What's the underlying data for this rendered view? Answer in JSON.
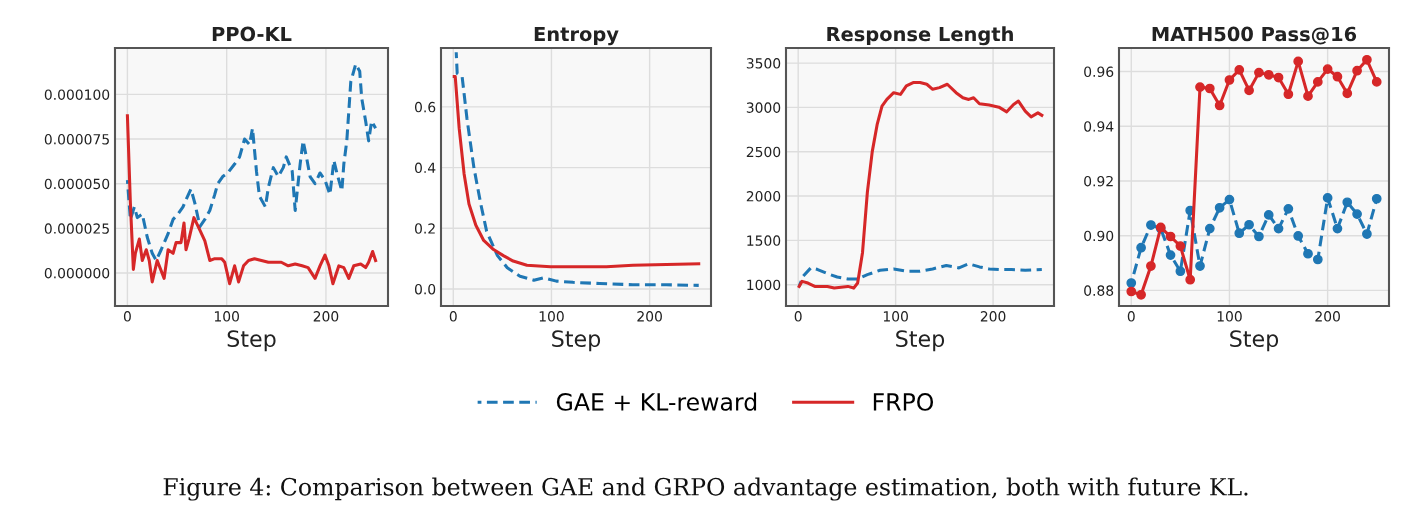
{
  "chart_data": [
    {
      "type": "line",
      "title": "PPO-KL",
      "xlabel": "Step",
      "legend": "bottom",
      "grid": true,
      "annotations": [
        "Figure 4: Comparison between GAE and GRPO advantage estimation, both with future KL."
      ],
      "xlim": [
        -12.5,
        262.5
      ],
      "xticks": [
        0,
        100,
        200
      ],
      "ylim": [
        -1.85e-05,
        0.000126
      ],
      "yticks": [
        {
          "value": 0,
          "label": "0.000000"
        },
        {
          "value": 2.5e-05,
          "label": "0.000025"
        },
        {
          "value": 5e-05,
          "label": "0.000050"
        },
        {
          "value": 7.5e-05,
          "label": "0.000075"
        },
        {
          "value": 0.0001,
          "label": "0.000100"
        }
      ],
      "series": [
        {
          "name": "GAE + KL-reward",
          "color": "#1f77b4",
          "line_style": "dashed",
          "x": [
            0,
            3,
            7,
            10,
            15,
            20,
            25,
            29,
            34,
            41,
            46,
            51,
            56,
            59,
            64,
            68,
            73,
            78,
            83,
            88,
            91,
            96,
            101,
            108,
            113,
            118,
            123,
            126,
            130,
            133,
            139,
            142,
            147,
            152,
            157,
            160,
            166,
            169,
            174,
            177,
            181,
            184,
            189,
            194,
            199,
            204,
            208,
            211,
            216,
            218,
            221,
            225,
            230,
            234,
            236,
            240,
            243,
            246,
            250
          ],
          "values": [
            5.2e-05,
            3e-05,
            3.7e-05,
            3.1e-05,
            3.3e-05,
            2e-05,
            1.1e-05,
            7e-06,
            1.3e-05,
            2.2e-05,
            3e-05,
            3.3e-05,
            3.7e-05,
            4.1e-05,
            4.7e-05,
            3.9e-05,
            2.6e-05,
            3e-05,
            3.5e-05,
            4.4e-05,
            5e-05,
            5.4e-05,
            5.6e-05,
            6.1e-05,
            6.5e-05,
            7.5e-05,
            7.2e-05,
            8.1e-05,
            5.7e-05,
            4.3e-05,
            3.7e-05,
            4.8e-05,
            5.9e-05,
            5.4e-05,
            5.9e-05,
            6.5e-05,
            5.7e-05,
            3.5e-05,
            6.1e-05,
            7.4e-05,
            6.3e-05,
            5.4e-05,
            5e-05,
            5.6e-05,
            5.2e-05,
            4.4e-05,
            6.3e-05,
            5.6e-05,
            4.6e-05,
            6.1e-05,
            7.4e-05,
            0.000107,
            0.000117,
            0.000113,
            9.8e-05,
            8.5e-05,
            7.4e-05,
            8.5e-05,
            8.1e-05
          ]
        },
        {
          "name": "FRPO",
          "color": "#d62728",
          "line_style": "solid",
          "x": [
            0,
            3,
            6,
            8,
            12,
            15,
            19,
            22,
            25,
            30,
            37,
            41,
            46,
            49,
            54,
            57,
            59,
            62,
            67,
            73,
            78,
            83,
            88,
            95,
            98,
            103,
            108,
            112,
            117,
            122,
            128,
            135,
            142,
            149,
            155,
            162,
            169,
            176,
            182,
            189,
            194,
            199,
            203,
            207,
            213,
            218,
            223,
            228,
            235,
            240,
            243,
            247,
            250
          ],
          "values": [
            8.8e-05,
            3.9e-05,
            2e-06,
            1.1e-05,
            1.9e-05,
            7e-06,
            1.3e-05,
            7e-06,
            -5e-06,
            7e-06,
            -3e-06,
            1.3e-05,
            1.1e-05,
            1.7e-05,
            1.7e-05,
            2.8e-05,
            1.3e-05,
            1.9e-05,
            3.1e-05,
            2.4e-05,
            1.8e-05,
            7e-06,
            8e-06,
            8e-06,
            6e-06,
            -6e-06,
            4e-06,
            -5e-06,
            4e-06,
            7e-06,
            8e-06,
            7e-06,
            6e-06,
            6e-06,
            6e-06,
            4e-06,
            5e-06,
            4e-06,
            3e-06,
            -3e-06,
            4e-06,
            1e-05,
            4e-06,
            -6e-06,
            4e-06,
            3e-06,
            -3e-06,
            4e-06,
            5e-06,
            3e-06,
            6e-06,
            1.2e-05,
            7e-06
          ]
        }
      ]
    },
    {
      "type": "line",
      "title": "Entropy",
      "xlabel": "Step",
      "grid": true,
      "xlim": [
        -12.5,
        262.5
      ],
      "xticks": [
        0,
        100,
        200
      ],
      "ylim": [
        -0.056,
        0.794
      ],
      "yticks": [
        {
          "value": 0,
          "label": "0.0"
        },
        0.2,
        0.4,
        0.6
      ],
      "series": [
        {
          "color": "#1f77b4",
          "line_style": "dashed",
          "x": [
            3,
            4,
            9,
            14,
            21,
            28,
            34,
            45,
            55,
            68,
            82,
            92,
            105,
            122,
            149,
            183,
            217,
            250
          ],
          "values": [
            0.78,
            0.71,
            0.7,
            0.56,
            0.4,
            0.28,
            0.19,
            0.11,
            0.07,
            0.042,
            0.029,
            0.037,
            0.026,
            0.022,
            0.018,
            0.014,
            0.014,
            0.012
          ]
        },
        {
          "color": "#d62728",
          "line_style": "solid",
          "x": [
            1,
            2,
            6,
            11,
            16,
            23,
            31,
            41,
            51,
            61,
            75,
            99,
            132,
            156,
            183,
            217,
            250
          ],
          "values": [
            0.7,
            0.7,
            0.53,
            0.38,
            0.28,
            0.21,
            0.16,
            0.13,
            0.11,
            0.092,
            0.078,
            0.073,
            0.073,
            0.073,
            0.078,
            0.081,
            0.083
          ]
        }
      ]
    },
    {
      "type": "line",
      "title": "Response Length",
      "xlabel": "Step",
      "grid": true,
      "xlim": [
        -12.5,
        262.5
      ],
      "xticks": [
        0,
        100,
        200
      ],
      "ylim": [
        760,
        3670
      ],
      "yticks": [
        1000,
        1500,
        2000,
        2500,
        3000,
        3500
      ],
      "series": [
        {
          "color": "#1f77b4",
          "line_style": "dashed",
          "x": [
            1,
            5,
            13,
            20,
            30,
            40,
            51,
            61,
            71,
            84,
            98,
            111,
            125,
            138,
            152,
            165,
            175,
            186,
            196,
            206,
            219,
            233,
            250
          ],
          "values": [
            981,
            1095,
            1190,
            1171,
            1125,
            1087,
            1065,
            1065,
            1114,
            1163,
            1178,
            1152,
            1152,
            1178,
            1217,
            1190,
            1236,
            1201,
            1178,
            1171,
            1171,
            1163,
            1171
          ]
        },
        {
          "color": "#d62728",
          "line_style": "solid",
          "x": [
            1,
            4,
            10,
            17,
            30,
            37,
            51,
            57,
            61,
            66,
            71,
            76,
            81,
            86,
            91,
            98,
            105,
            111,
            118,
            125,
            132,
            138,
            145,
            153,
            162,
            169,
            175,
            180,
            186,
            196,
            206,
            214,
            221,
            226,
            233,
            239,
            246,
            250
          ],
          "values": [
            981,
            1038,
            1019,
            981,
            981,
            962,
            981,
            962,
            1019,
            1361,
            2045,
            2501,
            2805,
            3014,
            3090,
            3166,
            3147,
            3242,
            3280,
            3280,
            3261,
            3204,
            3223,
            3261,
            3166,
            3109,
            3090,
            3109,
            3041,
            3026,
            3003,
            2950,
            3033,
            3071,
            2957,
            2893,
            2938,
            2911
          ]
        }
      ]
    },
    {
      "type": "line",
      "title": "MATH500 Pass@16",
      "xlabel": "Step",
      "grid": true,
      "marker": "circle",
      "xlim": [
        -12.5,
        262.5
      ],
      "xticks": [
        0,
        100,
        200
      ],
      "ylim": [
        0.8743,
        0.9686
      ],
      "yticks": [
        0.88,
        {
          "value": 0.9,
          "label": "0.90"
        },
        0.92,
        0.94,
        0.96
      ],
      "x": [
        0,
        10,
        20,
        30,
        40,
        50,
        60,
        70,
        80,
        90,
        100,
        110,
        120,
        130,
        140,
        150,
        160,
        170,
        180,
        190,
        200,
        210,
        220,
        230,
        240,
        250
      ],
      "series": [
        {
          "color": "#1f77b4",
          "line_style": "dashed",
          "values": [
            0.8827,
            0.8956,
            0.9039,
            0.9026,
            0.8929,
            0.887,
            0.9092,
            0.8889,
            0.9026,
            0.9102,
            0.9132,
            0.9009,
            0.904,
            0.8997,
            0.9076,
            0.9026,
            0.9098,
            0.8999,
            0.8934,
            0.8913,
            0.9138,
            0.9026,
            0.9122,
            0.9079,
            0.9006,
            0.9135
          ]
        },
        {
          "color": "#d62728",
          "line_style": "solid",
          "values": [
            0.8796,
            0.8784,
            0.8889,
            0.903,
            0.8997,
            0.8962,
            0.8839,
            0.9543,
            0.9538,
            0.9476,
            0.9569,
            0.9606,
            0.9531,
            0.9596,
            0.9588,
            0.9578,
            0.9517,
            0.9637,
            0.951,
            0.9562,
            0.9609,
            0.9581,
            0.952,
            0.9603,
            0.9643,
            0.9562
          ]
        }
      ]
    }
  ]
}
